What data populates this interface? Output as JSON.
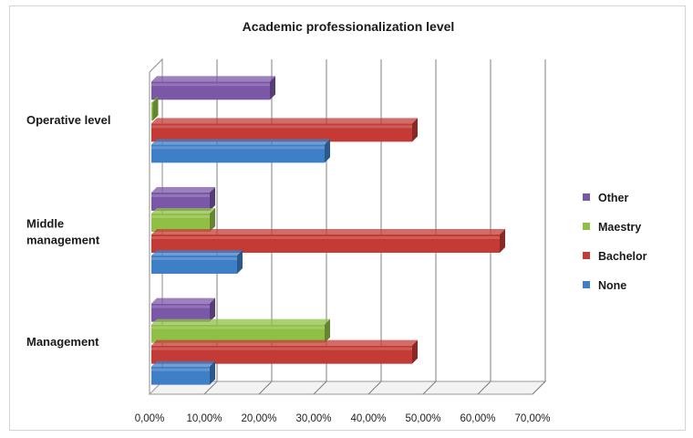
{
  "chart_data": {
    "type": "bar",
    "orientation": "horizontal",
    "title": "Academic professionalization level",
    "categories": [
      "Operative level",
      "Middle management",
      "Management"
    ],
    "category_lines": [
      [
        "Operative level"
      ],
      [
        "Middle",
        "management"
      ],
      [
        "Management"
      ]
    ],
    "series": [
      {
        "name": "Other",
        "color": "#7b57a8",
        "values": [
          22,
          11,
          11
        ]
      },
      {
        "name": "Maestry",
        "color": "#8fbf44",
        "values": [
          0.5,
          11,
          32
        ]
      },
      {
        "name": "Bachelor",
        "color": "#c43a35",
        "values": [
          48,
          64,
          48
        ]
      },
      {
        "name": "None",
        "color": "#3f7fc7",
        "values": [
          32,
          16,
          11
        ]
      }
    ],
    "legend_order": [
      "Other",
      "Maestry",
      "Bachelor",
      "None"
    ],
    "xlim": [
      0,
      70
    ],
    "xticks": [
      0,
      10,
      20,
      30,
      40,
      50,
      60,
      70
    ],
    "xtick_labels": [
      "0,00%",
      "10,00%",
      "20,00%",
      "30,00%",
      "40,00%",
      "50,00%",
      "60,00%",
      "70,00%"
    ],
    "grid": true,
    "legend_position": "right"
  }
}
